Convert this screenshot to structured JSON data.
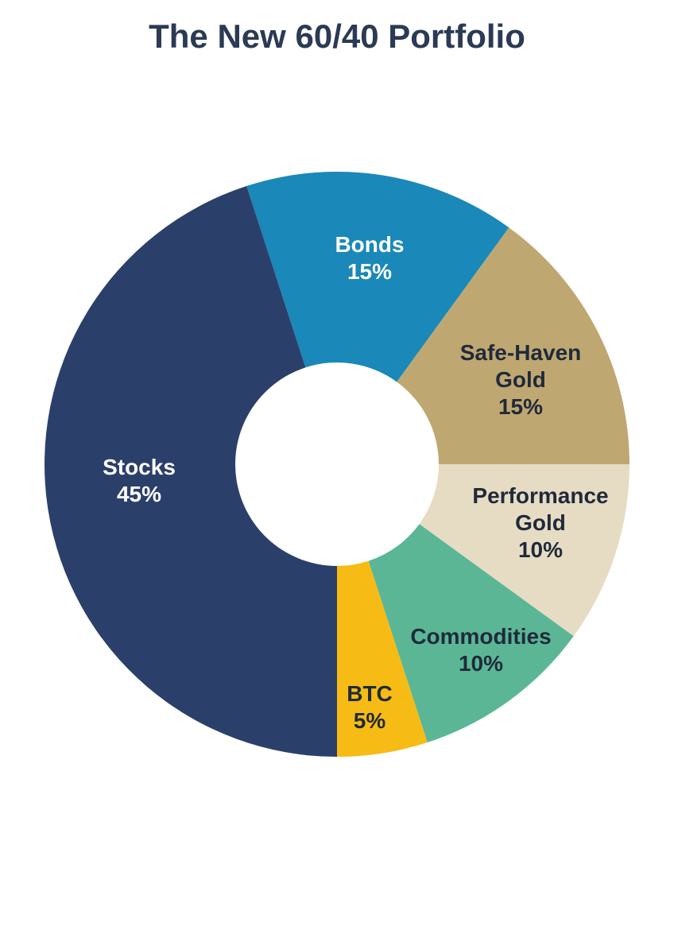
{
  "chart_data": {
    "type": "donut",
    "title": "The New 60/40 Portfolio",
    "categories": [
      "Stocks",
      "Bonds",
      "Safe-Haven Gold",
      "Performance Gold",
      "Commodities",
      "BTC"
    ],
    "values": [
      45,
      15,
      15,
      10,
      10,
      5
    ],
    "value_labels": [
      "45%",
      "15%",
      "15%",
      "10%",
      "10%",
      "5%"
    ],
    "colors": [
      "#2b3f6b",
      "#1a88b8",
      "#bfa772",
      "#e6dcc4",
      "#5bb695",
      "#f7bb16"
    ],
    "label_colors": [
      "#ffffff",
      "#ffffff",
      "#1f2a3a",
      "#1f2a3a",
      "#1f2a3a",
      "#1f2a3a"
    ]
  }
}
